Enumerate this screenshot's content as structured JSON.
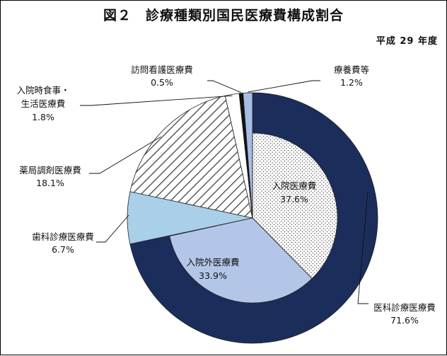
{
  "title": "図２　診療種類別国民医療費構成割合",
  "subtitle": "平成 29 年度",
  "chart_data": {
    "type": "pie",
    "title": "図２　診療種類別国民医療費構成割合",
    "subtitle": "平成 29 年度",
    "slices": [
      {
        "label": "医科診療医療費",
        "value": 71.6,
        "value_label": "71.6%",
        "color": "#1b2d5a",
        "pattern": "solid"
      },
      {
        "label": "歯科診療医療費",
        "value": 6.7,
        "value_label": "6.7%",
        "color": "#a9cfe9",
        "pattern": "solid"
      },
      {
        "label": "薬局調剤医療費",
        "value": 18.1,
        "value_label": "18.1%",
        "color": "#ffffff",
        "pattern": "diagonal-hatch"
      },
      {
        "label_lines": [
          "入院時食事・",
          "生活医療費"
        ],
        "value": 1.8,
        "value_label": "1.8%",
        "color": "#ffffff",
        "pattern": "solid"
      },
      {
        "label": "訪問看護医療費",
        "value": 0.5,
        "value_label": "0.5%",
        "color": "#111111",
        "pattern": "solid"
      },
      {
        "label": "療養費等",
        "value": 1.2,
        "value_label": "1.2%",
        "color": "#a6bde6",
        "pattern": "solid"
      }
    ],
    "inner_breakdown": {
      "parent": "医科診療医療費",
      "slices": [
        {
          "label": "入院医療費",
          "value": 37.6,
          "value_label": "37.6%",
          "color": "#ffffff",
          "pattern": "dots"
        },
        {
          "label": "入院外医療費",
          "value": 33.9,
          "value_label": "33.9%",
          "color": "#b3c6e8",
          "pattern": "solid"
        }
      ]
    },
    "start_angle_deg": 0,
    "direction": "clockwise",
    "legend": "none"
  }
}
